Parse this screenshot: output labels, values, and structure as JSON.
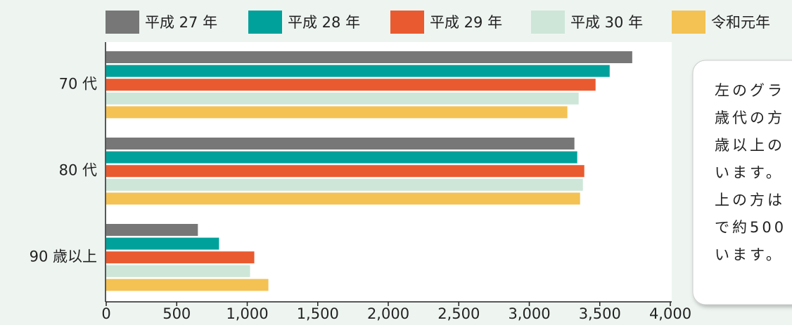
{
  "chart_data": {
    "type": "bar",
    "orientation": "horizontal",
    "categories": [
      "70 代",
      "80 代",
      "90 歳以上"
    ],
    "series": [
      {
        "name": "平成 27 年",
        "color": "#777777",
        "values": [
          3730,
          3320,
          650
        ]
      },
      {
        "name": "平成 28 年",
        "color": "#00a19a",
        "values": [
          3570,
          3340,
          800
        ]
      },
      {
        "name": "平成 29 年",
        "color": "#e95a30",
        "values": [
          3470,
          3390,
          1050
        ]
      },
      {
        "name": "平成 30 年",
        "color": "#cde6d8",
        "values": [
          3350,
          3380,
          1020
        ]
      },
      {
        "name": "令和元年",
        "color": "#f3c253",
        "values": [
          3270,
          3360,
          1150
        ]
      }
    ],
    "xlim": [
      0,
      4000
    ],
    "xticks": [
      0,
      500,
      {
        "value": 1000,
        "label": "1,000"
      },
      {
        "value": 1500,
        "label": "1,500"
      },
      {
        "value": 2000,
        "label": "2,000"
      },
      {
        "value": 2500,
        "label": "2,500"
      },
      {
        "value": 3000,
        "label": "3,000"
      },
      {
        "value": 3500,
        "label": "3,500"
      },
      {
        "value": 4000,
        "label": "4,000"
      }
    ],
    "legend": "top"
  },
  "annotation": {
    "lines": [
      "左のグラ",
      "歳代の方",
      "歳以上の",
      "います。",
      "上の方は",
      "で約500",
      "います。"
    ]
  }
}
